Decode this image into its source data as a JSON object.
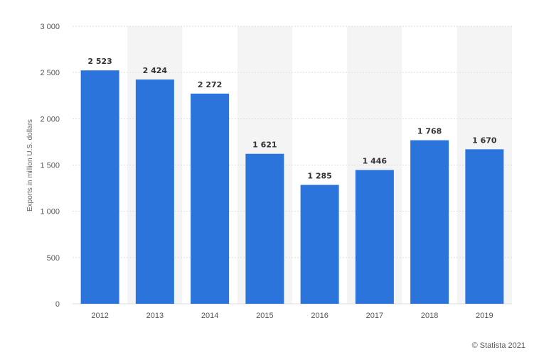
{
  "chart_data": {
    "type": "bar",
    "categories": [
      "2012",
      "2013",
      "2014",
      "2015",
      "2016",
      "2017",
      "2018",
      "2019"
    ],
    "values": [
      2523,
      2424,
      2272,
      1621,
      1285,
      1446,
      1768,
      1670
    ],
    "value_labels": [
      "2 523",
      "2 424",
      "2 272",
      "1 621",
      "1 285",
      "1 446",
      "1 768",
      "1 670"
    ],
    "ylabel": "Exports in million U.S. dollars",
    "ylim": [
      0,
      3000
    ],
    "yticks": [
      0,
      500,
      1000,
      1500,
      2000,
      2500,
      3000
    ],
    "ytick_labels": [
      "0",
      "500",
      "1 000",
      "1 500",
      "2 000",
      "2 500",
      "3 000"
    ],
    "grid": true,
    "bar_color": "#2a74db",
    "band_color": "#f4f4f4",
    "grid_color": "#dddddd"
  },
  "credit": "© Statista 2021"
}
